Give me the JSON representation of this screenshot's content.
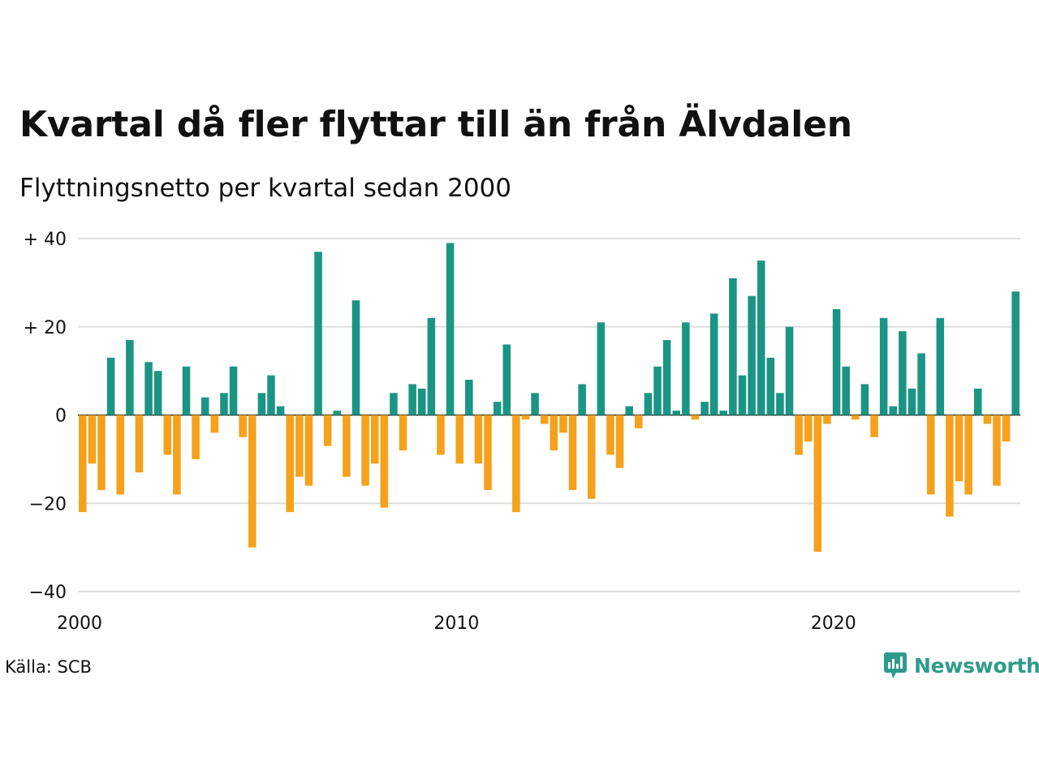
{
  "chart_data": {
    "type": "bar",
    "title": "Kvartal då fler flyttar till än från Älvdalen",
    "subtitle": "Flyttningsnetto per kvartal sedan 2000",
    "xlabel": "",
    "ylabel": "",
    "x_start": 2000,
    "x_ticks": [
      "2000",
      "2010",
      "2020"
    ],
    "y_ticks": [
      {
        "value": 40,
        "label": "+ 40"
      },
      {
        "value": 20,
        "label": "+ 20"
      },
      {
        "value": 0,
        "label": "0"
      },
      {
        "value": -20,
        "label": "−20"
      },
      {
        "value": -40,
        "label": "−40"
      }
    ],
    "ylim": [
      -40,
      40
    ],
    "grid": true,
    "legend": "none",
    "values": [
      -22,
      -11,
      -17,
      13,
      -18,
      17,
      -13,
      12,
      10,
      -9,
      -18,
      11,
      -10,
      4,
      -4,
      5,
      11,
      -5,
      -30,
      5,
      9,
      2,
      -22,
      -14,
      -16,
      37,
      -7,
      1,
      -14,
      26,
      -16,
      -11,
      -21,
      5,
      -8,
      7,
      6,
      22,
      -9,
      39,
      -11,
      8,
      -11,
      -17,
      3,
      16,
      -22,
      -1,
      5,
      -2,
      -8,
      -4,
      -17,
      7,
      -19,
      21,
      -9,
      -12,
      2,
      -3,
      5,
      11,
      17,
      1,
      21,
      -1,
      3,
      23,
      1,
      31,
      9,
      27,
      35,
      13,
      5,
      20,
      -9,
      -6,
      -31,
      -2,
      24,
      11,
      -1,
      7,
      -5,
      22,
      2,
      19,
      6,
      14,
      -18,
      22,
      -23,
      -15,
      -18,
      6,
      -2,
      -16,
      -6,
      28
    ],
    "colors": {
      "positive": "#1a9583",
      "negative": "#f5a11b",
      "grid": "#dddddd"
    }
  },
  "footer": {
    "source": "Källa: SCB",
    "brand": "Newsworthy"
  }
}
